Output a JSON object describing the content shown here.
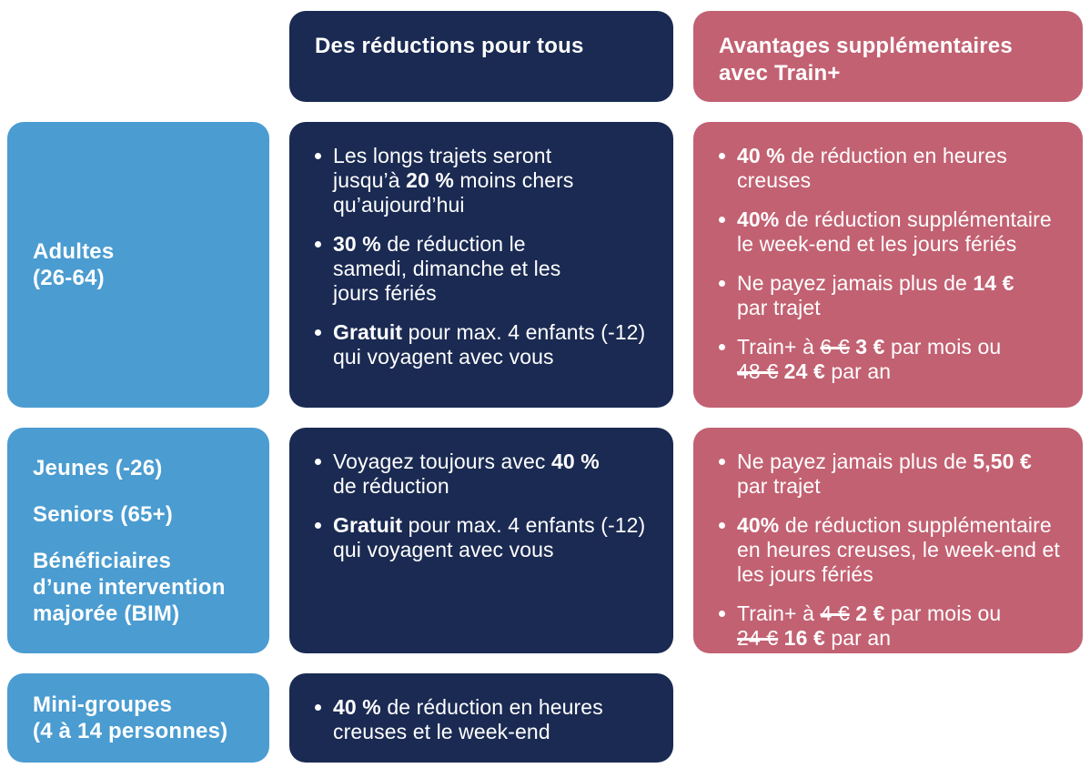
{
  "colors": {
    "navy": "#1a2a52",
    "blue": "#4a9cd1",
    "rose": "#c26172",
    "text": "#ffffff",
    "background": "#ffffff"
  },
  "headers": {
    "everyone": "Des réductions pour tous",
    "trainplus": "Avantages supplémentaires\navec Train+"
  },
  "rows": [
    {
      "audience": [
        "Adultes\n(26-64)"
      ],
      "everyone_bullets": [
        [
          {
            "t": "Les longs trajets seront\njusqu’à "
          },
          {
            "t": "20 %",
            "s": "b"
          },
          {
            "t": " moins chers\nqu’aujourd’hui"
          }
        ],
        [
          {
            "t": "30 %",
            "s": "b"
          },
          {
            "t": " de réduction le\nsamedi, dimanche et les\njours fériés"
          }
        ],
        [
          {
            "t": "Gratuit",
            "s": "b"
          },
          {
            "t": " pour max. 4 enfants (-12)\nqui voyagent avec vous"
          }
        ]
      ],
      "trainplus_bullets": [
        [
          {
            "t": "40 %",
            "s": "b"
          },
          {
            "t": " de réduction en heures\ncreuses"
          }
        ],
        [
          {
            "t": "40%",
            "s": "b"
          },
          {
            "t": " de réduction supplémentaire\nle week-end et les jours fériés"
          }
        ],
        [
          {
            "t": "Ne payez jamais plus de "
          },
          {
            "t": "14 €",
            "s": "b"
          },
          {
            "t": "\npar trajet"
          }
        ],
        [
          {
            "t": "Train+ à "
          },
          {
            "t": "6 €",
            "s": "x"
          },
          {
            "t": " "
          },
          {
            "t": "3 €",
            "s": "b"
          },
          {
            "t": " par mois ou\n"
          },
          {
            "t": "48 €",
            "s": "x"
          },
          {
            "t": " "
          },
          {
            "t": "24 €",
            "s": "b"
          },
          {
            "t": " par an"
          }
        ]
      ]
    },
    {
      "audience": [
        "Jeunes (-26)",
        "Seniors (65+)",
        "Bénéficiaires\nd’une intervention\nmajorée (BIM)"
      ],
      "everyone_bullets": [
        [
          {
            "t": "Voyagez toujours avec "
          },
          {
            "t": "40 %",
            "s": "b"
          },
          {
            "t": "\nde réduction"
          }
        ],
        [
          {
            "t": "Gratuit",
            "s": "b"
          },
          {
            "t": " pour max. 4 enfants (-12)\nqui voyagent avec vous"
          }
        ]
      ],
      "trainplus_bullets": [
        [
          {
            "t": "Ne payez jamais plus de "
          },
          {
            "t": "5,50 €",
            "s": "b"
          },
          {
            "t": "\npar trajet"
          }
        ],
        [
          {
            "t": "40%",
            "s": "b"
          },
          {
            "t": " de réduction supplémentaire\nen heures creuses, le week-end et\nles jours fériés"
          }
        ],
        [
          {
            "t": "Train+ à "
          },
          {
            "t": "4 €",
            "s": "x"
          },
          {
            "t": " "
          },
          {
            "t": "2 €",
            "s": "b"
          },
          {
            "t": " par mois ou\n"
          },
          {
            "t": "24 €",
            "s": "x"
          },
          {
            "t": " "
          },
          {
            "t": "16 €",
            "s": "b"
          },
          {
            "t": " par an"
          }
        ]
      ]
    },
    {
      "audience": [
        "Mini-groupes\n(4 à 14 personnes)"
      ],
      "everyone_bullets": [
        [
          {
            "t": "40 %",
            "s": "b"
          },
          {
            "t": " de réduction en heures\ncreuses et le week-end"
          }
        ]
      ],
      "trainplus_bullets": []
    }
  ]
}
